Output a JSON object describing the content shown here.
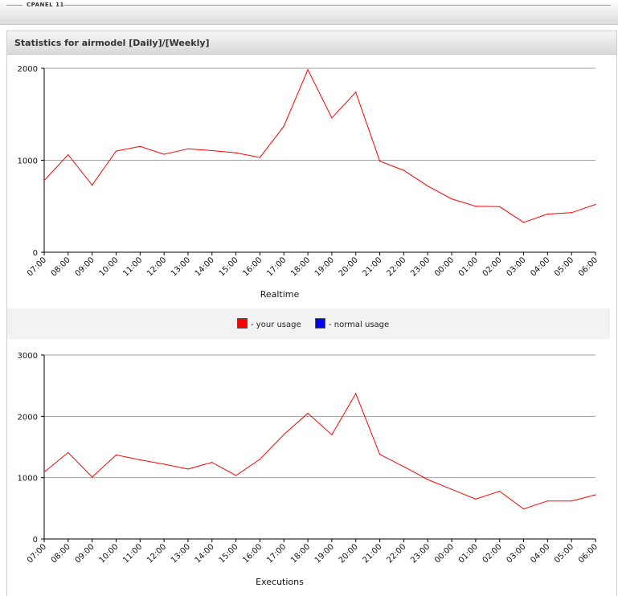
{
  "header": {
    "brand": "CPANEL 11"
  },
  "panel": {
    "title": "Statistics for airmodel [Daily]/[Weekly]"
  },
  "legend": {
    "items": [
      {
        "label": "- your usage",
        "color": "#ff0000"
      },
      {
        "label": "- normal usage",
        "color": "#0000ff"
      }
    ]
  },
  "chart_data": [
    {
      "type": "line",
      "xlabel": "Realtime",
      "ylim": [
        0,
        2000
      ],
      "yticks": [
        0,
        1000,
        2000
      ],
      "categories": [
        "07:00",
        "08:00",
        "09:00",
        "10:00",
        "11:00",
        "12:00",
        "13:00",
        "14:00",
        "15:00",
        "16:00",
        "17:00",
        "18:00",
        "19:00",
        "20:00",
        "21:00",
        "22:00",
        "23:00",
        "00:00",
        "01:00",
        "02:00",
        "03:00",
        "04:00",
        "05:00",
        "06:00"
      ],
      "series": [
        {
          "color": "#ff0000",
          "values": [
            780,
            1060,
            730,
            1100,
            1150,
            1065,
            1125,
            1105,
            1080,
            1030,
            1370,
            1985,
            1460,
            1740,
            990,
            890,
            720,
            580,
            500,
            495,
            325,
            415,
            430,
            520
          ]
        }
      ],
      "grid": true
    },
    {
      "type": "line",
      "xlabel": "Executions",
      "ylim": [
        0,
        3000
      ],
      "yticks": [
        0,
        1000,
        2000,
        3000
      ],
      "categories": [
        "07:00",
        "08:00",
        "09:00",
        "10:00",
        "11:00",
        "12:00",
        "13:00",
        "14:00",
        "15:00",
        "16:00",
        "17:00",
        "18:00",
        "19:00",
        "20:00",
        "21:00",
        "22:00",
        "23:00",
        "00:00",
        "01:00",
        "02:00",
        "03:00",
        "04:00",
        "05:00",
        "06:00"
      ],
      "series": [
        {
          "color": "#ff0000",
          "values": [
            1090,
            1410,
            1010,
            1370,
            1290,
            1220,
            1140,
            1250,
            1035,
            1300,
            1705,
            2050,
            1700,
            2370,
            1380,
            1180,
            970,
            810,
            650,
            780,
            490,
            620,
            620,
            720
          ]
        }
      ],
      "grid": true
    }
  ]
}
